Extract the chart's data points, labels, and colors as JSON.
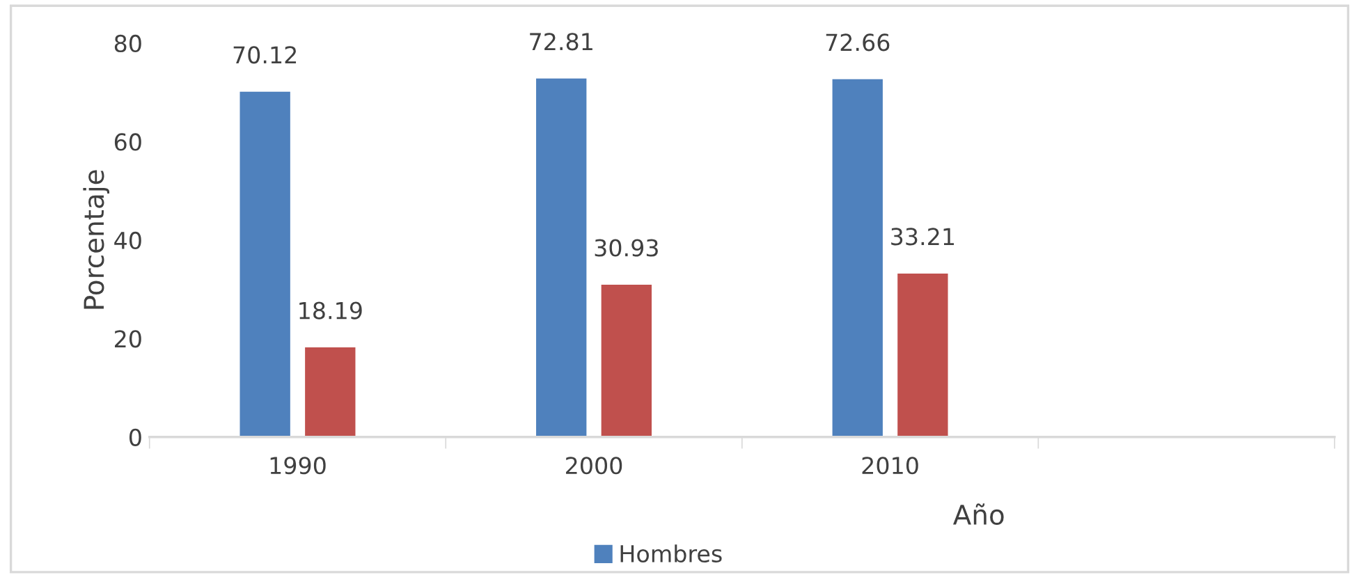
{
  "chart_data": {
    "type": "bar",
    "xlabel": "Año",
    "ylabel": "Porcentaje",
    "categories": [
      "1990",
      "2000",
      "2010",
      null
    ],
    "series": [
      {
        "name": "Hombres",
        "color": "#4f81bd",
        "values": [
          70.12,
          72.81,
          72.66,
          null
        ]
      },
      {
        "color": "#c0504d",
        "values": [
          18.19,
          30.93,
          33.21,
          null
        ]
      }
    ],
    "ylim": [
      0,
      80
    ],
    "yticks": [
      0,
      20,
      40,
      60,
      80
    ],
    "data_labels": true,
    "grid": false,
    "legend": "bottom"
  }
}
